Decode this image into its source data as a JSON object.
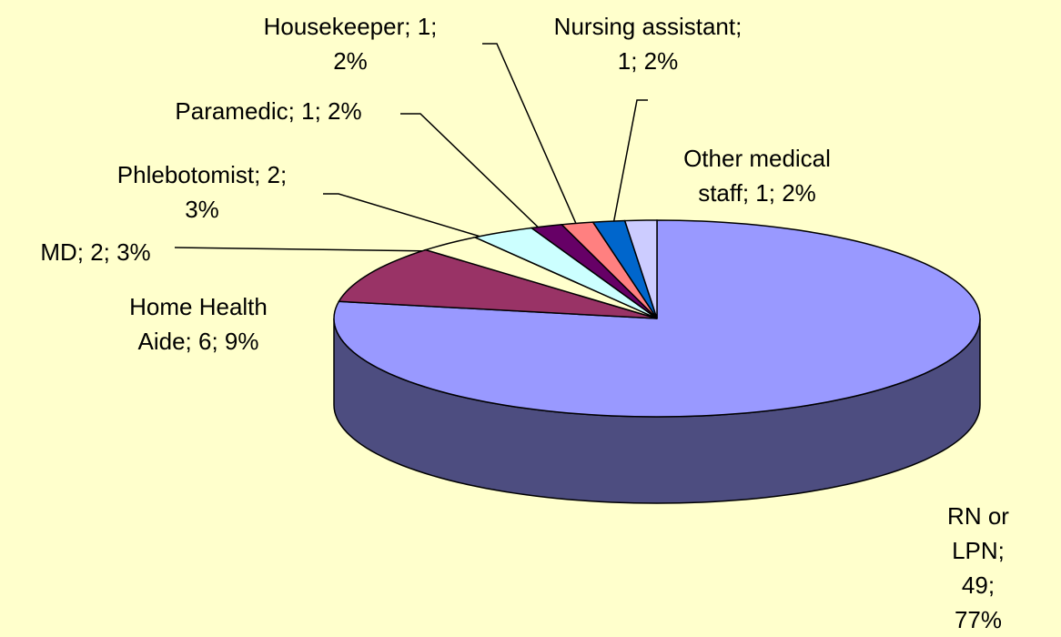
{
  "chart_data": {
    "type": "pie3d",
    "values": [
      49,
      6,
      2,
      2,
      1,
      1,
      1,
      1
    ],
    "value_labels": [
      "RN or LPN; 49;\n77%",
      "Home Health\nAide; 6; 9%",
      "MD; 2; 3%",
      "Phlebotomist; 2;\n3%",
      "Paramedic; 1; 2%",
      "Housekeeper; 1;\n2%",
      "Nursing assistant;\n1; 2%",
      "Other medical\nstaff; 1; 2%"
    ],
    "colors": [
      "#9999ff",
      "#993366",
      "#ffffcc",
      "#ccffff",
      "#660066",
      "#ff8080",
      "#0066cc",
      "#ccccff"
    ]
  }
}
